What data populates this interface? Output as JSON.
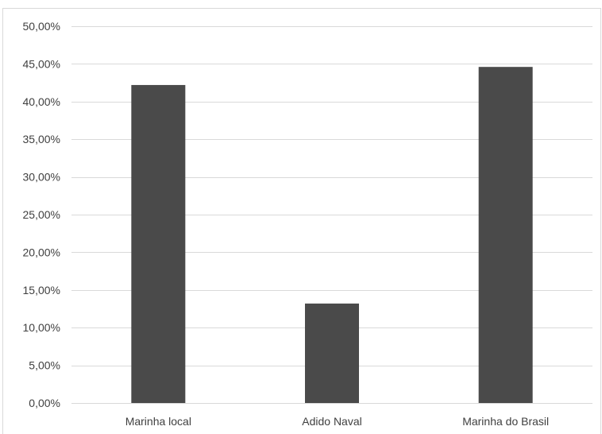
{
  "chart_data": {
    "type": "bar",
    "title": "",
    "xlabel": "",
    "ylabel": "",
    "categories": [
      "Marinha local",
      "Adido Naval",
      "Marinha do Brasil"
    ],
    "values": [
      42.2,
      13.2,
      44.6
    ],
    "ylim": [
      0,
      50
    ],
    "yticks": [
      0,
      5,
      10,
      15,
      20,
      25,
      30,
      35,
      40,
      45,
      50
    ],
    "ytick_labels": [
      "0,00%",
      "5,00%",
      "10,00%",
      "15,00%",
      "20,00%",
      "25,00%",
      "30,00%",
      "35,00%",
      "40,00%",
      "45,00%",
      "50,00%"
    ],
    "grid": true,
    "legend": "none",
    "bar_color": "#4a4a4a",
    "grid_color": "#d9d9d9"
  }
}
